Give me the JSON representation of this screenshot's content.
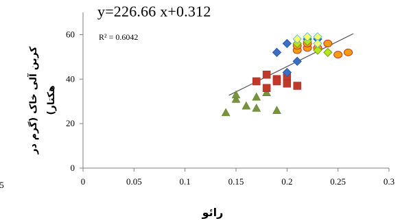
{
  "chart_data": {
    "type": "scatter",
    "equation": "y=226.66 x+0.312",
    "r2": "R² = 0.6042",
    "ylabel": "کربن آلی خاک (گرم در هکتار)",
    "xlabel": "رائو",
    "left_fragment_tick": ".5",
    "x_ticks": [
      "0",
      "0.05",
      "0.1",
      "0.15",
      "0.2",
      "0.25",
      "0.3"
    ],
    "y_ticks": [
      "0",
      "20",
      "40",
      "60"
    ],
    "xlim": [
      0,
      0.3
    ],
    "ylim": [
      0,
      70
    ],
    "grid": false,
    "trendline": {
      "x1": 0.143,
      "y1": 32.7,
      "x2": 0.265,
      "y2": 60.4,
      "color": "#555555"
    },
    "series": [
      {
        "marker": "triangle",
        "color": "#77933c",
        "stroke": "#5e7a2c",
        "points": [
          [
            0.14,
            25
          ],
          [
            0.15,
            31
          ],
          [
            0.15,
            33
          ],
          [
            0.16,
            28
          ],
          [
            0.17,
            27
          ],
          [
            0.17,
            32
          ],
          [
            0.18,
            34
          ],
          [
            0.19,
            26
          ]
        ]
      },
      {
        "marker": "square",
        "color": "#c0392b",
        "stroke": "#a32b20",
        "points": [
          [
            0.17,
            39
          ],
          [
            0.18,
            42
          ],
          [
            0.18,
            36
          ],
          [
            0.19,
            40
          ],
          [
            0.19,
            39
          ],
          [
            0.2,
            41
          ],
          [
            0.2,
            38
          ],
          [
            0.21,
            37
          ]
        ]
      },
      {
        "marker": "diamond",
        "color": "#3a6fc4",
        "stroke": "#2d5aa3",
        "points": [
          [
            0.19,
            52
          ],
          [
            0.2,
            43
          ],
          [
            0.2,
            56
          ],
          [
            0.21,
            48
          ],
          [
            0.22,
            58
          ],
          [
            0.23,
            58
          ]
        ]
      },
      {
        "marker": "circle",
        "color": "#f39c12",
        "stroke": "#c0392b",
        "points": [
          [
            0.21,
            53
          ],
          [
            0.21,
            55
          ],
          [
            0.22,
            54
          ],
          [
            0.22,
            56
          ],
          [
            0.23,
            54
          ],
          [
            0.24,
            56
          ],
          [
            0.25,
            51
          ],
          [
            0.26,
            52
          ]
        ]
      },
      {
        "marker": "diamond",
        "color": "#b5e61d",
        "stroke": "#7aa010",
        "points": [
          [
            0.21,
            56
          ],
          [
            0.22,
            57
          ],
          [
            0.23,
            53
          ],
          [
            0.24,
            52
          ]
        ]
      },
      {
        "marker": "diamond",
        "color": "#ffff66",
        "stroke": "#5bc0de",
        "points": [
          [
            0.21,
            58
          ],
          [
            0.22,
            59
          ],
          [
            0.23,
            59
          ],
          [
            0.23,
            56
          ]
        ]
      }
    ]
  }
}
